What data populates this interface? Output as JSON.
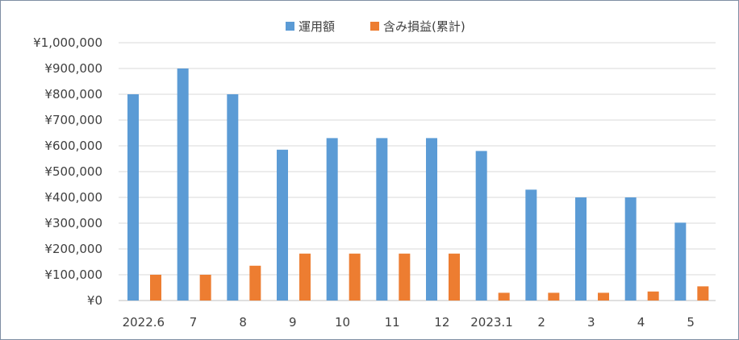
{
  "chart_data": {
    "type": "bar",
    "categories": [
      "2022.6",
      "7",
      "8",
      "9",
      "10",
      "11",
      "12",
      "2023.1",
      "2",
      "3",
      "4",
      "5"
    ],
    "series": [
      {
        "name": "運用額",
        "color": "#5b9bd5",
        "values": [
          800000,
          900000,
          800000,
          585000,
          630000,
          630000,
          630000,
          580000,
          430000,
          400000,
          400000,
          302000
        ]
      },
      {
        "name": "含み損益(累計)",
        "color": "#ed7d31",
        "values": [
          100000,
          100000,
          135000,
          182000,
          182000,
          182000,
          182000,
          30000,
          30000,
          30000,
          35000,
          55000
        ]
      }
    ],
    "ylim": [
      0,
      1000000
    ],
    "yticks": [
      "¥0",
      "¥100,000",
      "¥200,000",
      "¥300,000",
      "¥400,000",
      "¥500,000",
      "¥600,000",
      "¥700,000",
      "¥800,000",
      "¥900,000",
      "¥1,000,000"
    ],
    "grid": true,
    "legend_position": "top-center"
  }
}
